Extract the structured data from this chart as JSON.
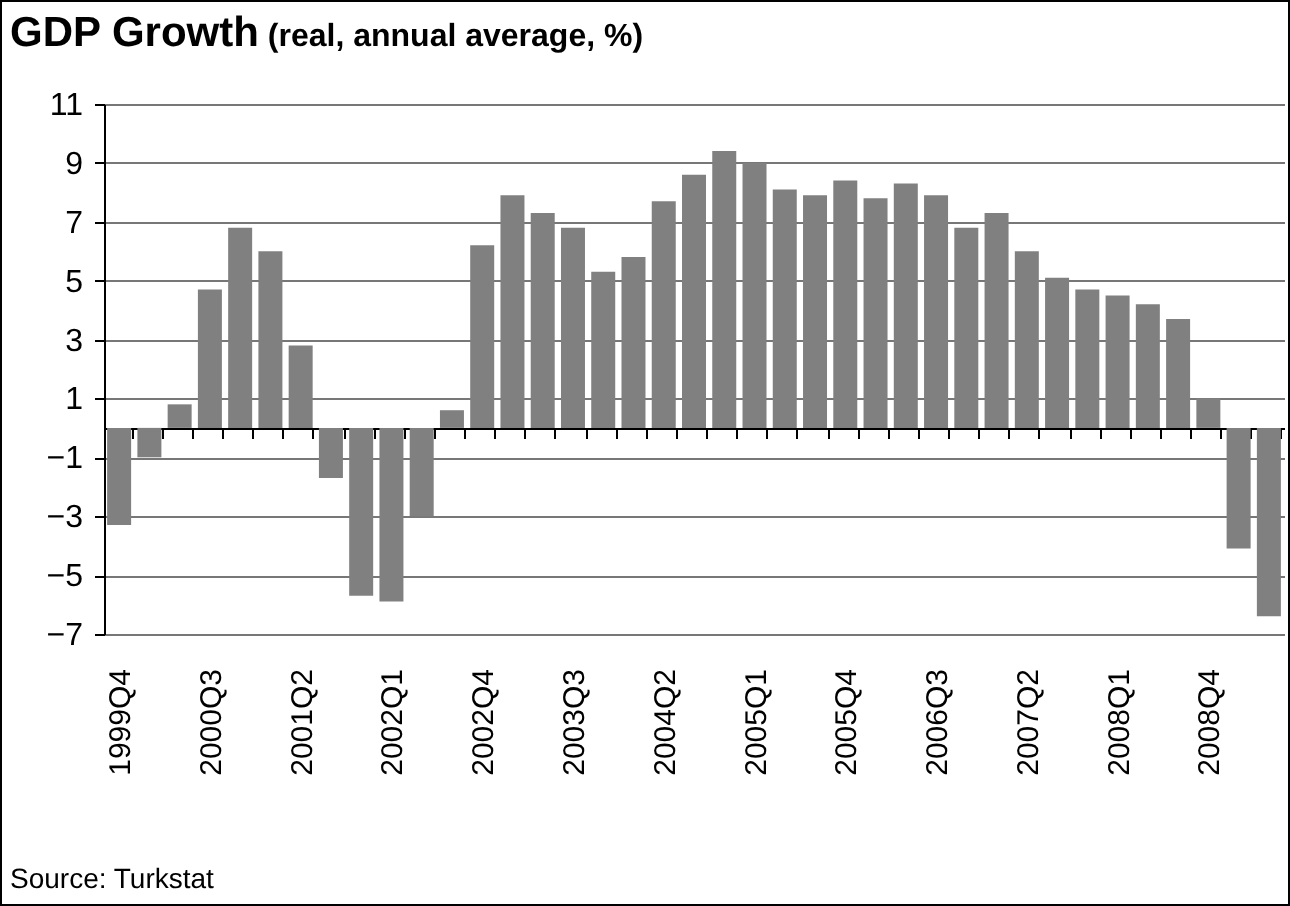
{
  "chart_data": {
    "type": "bar",
    "title": "GDP Growth",
    "subtitle": "(real, annual average, %)",
    "categories": [
      "1999Q4",
      null,
      null,
      "2000Q3",
      null,
      null,
      "2001Q2",
      null,
      null,
      "2002Q1",
      null,
      null,
      "2002Q4",
      null,
      null,
      "2003Q3",
      null,
      null,
      "2004Q2",
      null,
      null,
      "2005Q1",
      null,
      null,
      "2005Q4",
      null,
      null,
      "2006Q3",
      null,
      null,
      "2007Q2",
      null,
      null,
      "2008Q1",
      null,
      null,
      "2008Q4",
      null,
      null
    ],
    "values": [
      -3.3,
      -1.0,
      0.8,
      4.7,
      6.8,
      6.0,
      2.8,
      -1.7,
      -5.7,
      -5.9,
      -3.0,
      0.6,
      6.2,
      7.9,
      7.3,
      6.8,
      5.3,
      5.8,
      7.7,
      8.6,
      9.4,
      9.0,
      8.1,
      7.9,
      8.4,
      7.8,
      8.3,
      7.9,
      6.8,
      7.3,
      6.0,
      5.1,
      4.7,
      4.5,
      4.2,
      3.7,
      1.0,
      -4.1,
      -6.4
    ],
    "color": "#808080",
    "ylim": [
      -7,
      11
    ],
    "yticks": [
      -7,
      -5,
      -3,
      -1,
      1,
      3,
      5,
      7,
      9,
      11
    ],
    "grid": "y",
    "annotations": [
      "Source: Turkstat"
    ]
  }
}
